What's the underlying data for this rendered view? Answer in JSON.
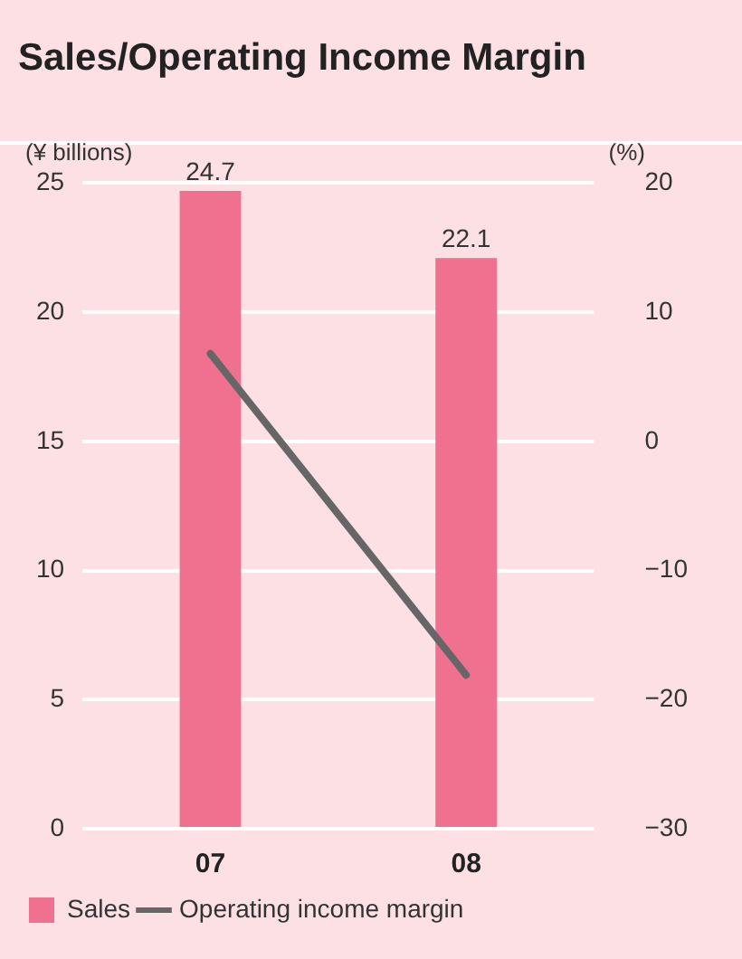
{
  "chart_data": {
    "type": "bar",
    "title": "Sales/Operating Income Margin",
    "ylabel": "(¥ billions)",
    "y2label": "(%)",
    "categories": [
      "07",
      "08"
    ],
    "series": [
      {
        "name": "Sales",
        "color": "#f07090",
        "values": [
          24.7,
          22.1
        ],
        "value_labels": [
          "24.7",
          "22.1"
        ]
      },
      {
        "name": "Operating income margin",
        "type": "line",
        "axis": "y2",
        "color": "#666666",
        "values": [
          6.8,
          -18.1
        ]
      }
    ],
    "ylim": [
      0,
      25
    ],
    "yticks": [
      0,
      5,
      10,
      15,
      20,
      25
    ],
    "y2lim": [
      -30,
      20
    ],
    "y2ticks": [
      -30,
      -20,
      -10,
      0,
      10,
      20
    ],
    "grid": "y",
    "legend": "bottom",
    "marker": "none",
    "line_style": "solid"
  }
}
